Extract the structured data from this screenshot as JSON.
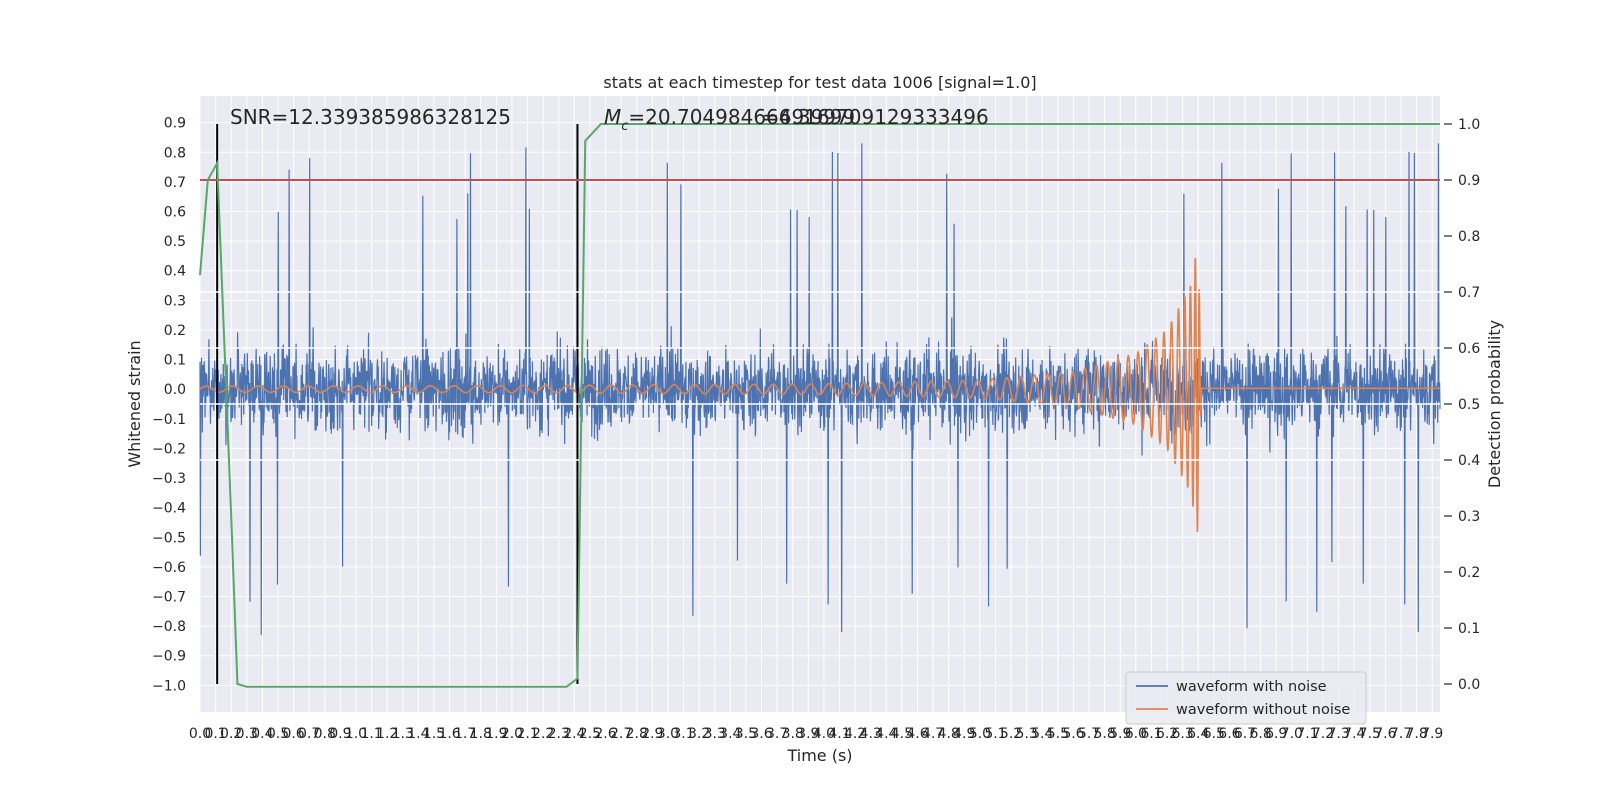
{
  "chart_data": {
    "type": "line",
    "title": "stats at each timestep for test data 1006 [signal=1.0]",
    "xlabel": "Time (s)",
    "ylabel": "Whitened strain",
    "y2label": "Detection probability",
    "xlim": [
      0.0,
      7.95
    ],
    "ylim": [
      -1.09,
      0.99
    ],
    "y2lim": [
      -0.05,
      1.05
    ],
    "x_ticks": [
      0.0,
      0.1,
      0.2,
      0.3,
      0.4,
      0.5,
      0.6,
      0.7,
      0.8,
      0.9,
      1.0,
      1.1,
      1.2,
      1.3,
      1.4,
      1.5,
      1.6,
      1.7,
      1.8,
      1.9,
      2.0,
      2.1,
      2.2,
      2.3,
      2.4,
      2.5,
      2.6,
      2.7,
      2.8,
      2.9,
      3.0,
      3.1,
      3.2,
      3.3,
      3.4,
      3.5,
      3.6,
      3.7,
      3.8,
      3.9,
      4.0,
      4.1,
      4.2,
      4.3,
      4.4,
      4.5,
      4.6,
      4.7,
      4.8,
      4.9,
      5.0,
      5.1,
      5.2,
      5.3,
      5.4,
      5.5,
      5.6,
      5.7,
      5.8,
      5.9,
      6.0,
      6.1,
      6.2,
      6.3,
      6.4,
      6.5,
      6.6,
      6.7,
      6.8,
      6.9,
      7.0,
      7.1,
      7.2,
      7.3,
      7.4,
      7.5,
      7.6,
      7.7,
      7.8,
      7.9
    ],
    "y_ticks": [
      "0.9",
      "0.8",
      "0.7",
      "0.6",
      "0.5",
      "0.4",
      "0.3",
      "0.2",
      "0.1",
      "0.0",
      "−0.1",
      "−0.2",
      "−0.3",
      "−0.4",
      "−0.5",
      "−0.6",
      "−0.7",
      "−0.8",
      "−0.9",
      "−1.0"
    ],
    "y2_ticks": [
      "1.0",
      "0.9",
      "0.8",
      "0.7",
      "0.6",
      "0.5",
      "0.4",
      "0.3",
      "0.2",
      "0.1",
      "0.0"
    ],
    "annotations": {
      "snr": "SNR=12.339385986328125",
      "mc": "M_c=20.70498466491699",
      "mc_overlap": "=6.399709129333496"
    },
    "threshold_probability": 0.9,
    "vertical_markers_s": [
      0.11,
      2.42
    ],
    "series": [
      {
        "name": "waveform with noise",
        "color": "#4c72b0",
        "description_stats": {
          "typical_min": -0.5,
          "typical_max": 0.5,
          "extreme_min": -0.97,
          "extreme_max": 0.9
        }
      },
      {
        "name": "waveform without noise",
        "color": "#dd8452",
        "envelope": {
          "x": [
            0.0,
            2.0,
            4.0,
            5.0,
            5.6,
            6.0,
            6.2,
            6.35,
            6.4,
            6.42,
            7.95
          ],
          "amplitude": [
            0.01,
            0.012,
            0.018,
            0.03,
            0.06,
            0.12,
            0.2,
            0.35,
            0.5,
            0.003,
            0.003
          ]
        },
        "chirp_end_s": 6.42
      },
      {
        "color": "#55a868",
        "axis": "y2",
        "x": [
          0.0,
          0.05,
          0.11,
          0.15,
          0.2,
          0.24,
          0.3,
          2.35,
          2.42,
          2.47,
          2.57,
          7.95
        ],
        "values": [
          0.73,
          0.9,
          0.93,
          0.65,
          0.3,
          0.0,
          -0.005,
          -0.005,
          0.01,
          0.97,
          1.0,
          1.0
        ]
      },
      {
        "color": "#c44e52",
        "axis": "y2",
        "x": [
          0.0,
          7.95
        ],
        "values": [
          0.9,
          0.9
        ]
      }
    ],
    "legend": {
      "location": "lower-right",
      "entries": [
        "waveform with noise",
        "waveform without noise"
      ]
    },
    "grid": true
  }
}
